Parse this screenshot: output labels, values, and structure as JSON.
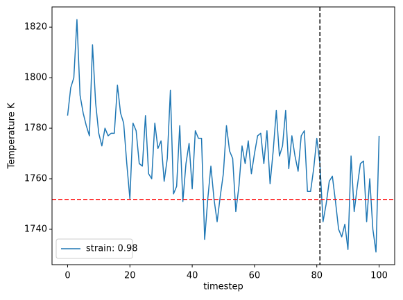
{
  "chart_data": {
    "type": "line",
    "xlabel": "timestep",
    "ylabel": "Temperature K",
    "x": [
      0,
      1,
      2,
      3,
      4,
      5,
      6,
      7,
      8,
      9,
      10,
      11,
      12,
      13,
      14,
      15,
      16,
      17,
      18,
      19,
      20,
      21,
      22,
      23,
      24,
      25,
      26,
      27,
      28,
      29,
      30,
      31,
      32,
      33,
      34,
      35,
      36,
      37,
      38,
      39,
      40,
      41,
      42,
      43,
      44,
      45,
      46,
      47,
      48,
      49,
      50,
      51,
      52,
      53,
      54,
      55,
      56,
      57,
      58,
      59,
      60,
      61,
      62,
      63,
      64,
      65,
      66,
      67,
      68,
      69,
      70,
      71,
      72,
      73,
      74,
      75,
      76,
      77,
      78,
      79,
      80,
      81,
      82,
      83,
      84,
      85,
      86,
      87,
      88,
      89,
      90,
      91,
      92,
      93,
      94,
      95,
      96,
      97,
      98,
      99,
      100
    ],
    "series": [
      {
        "name": "strain: 0.98",
        "color": "#1f77b4",
        "values": [
          1785,
          1796,
          1800,
          1823,
          1793,
          1786,
          1781,
          1777,
          1813,
          1790,
          1778,
          1773,
          1780,
          1777,
          1778,
          1778,
          1797,
          1786,
          1782,
          1766,
          1752,
          1782,
          1779,
          1766,
          1765,
          1785,
          1762,
          1760,
          1782,
          1772,
          1775,
          1759,
          1768,
          1795,
          1754,
          1757,
          1781,
          1751,
          1766,
          1774,
          1756,
          1779,
          1776,
          1776,
          1736,
          1752,
          1765,
          1752,
          1743,
          1753,
          1762,
          1781,
          1771,
          1768,
          1747,
          1757,
          1773,
          1766,
          1775,
          1762,
          1770,
          1777,
          1778,
          1766,
          1779,
          1758,
          1771,
          1787,
          1769,
          1773,
          1787,
          1764,
          1777,
          1769,
          1763,
          1777,
          1779,
          1755,
          1755,
          1764,
          1776,
          1766,
          1743,
          1750,
          1759,
          1761,
          1751,
          1740,
          1737,
          1742,
          1732,
          1769,
          1747,
          1757,
          1766,
          1767,
          1743,
          1760,
          1740,
          1731,
          1777
        ]
      }
    ],
    "hline": {
      "y": 1751.8,
      "color": "#ff0000"
    },
    "vline": {
      "x": 81,
      "color": "#000000"
    },
    "xlim": [
      -5,
      105
    ],
    "ylim": [
      1726,
      1828
    ],
    "xticks": [
      0,
      20,
      40,
      60,
      80,
      100
    ],
    "yticks": [
      1740,
      1760,
      1780,
      1800,
      1820
    ],
    "legend": "lower left"
  }
}
